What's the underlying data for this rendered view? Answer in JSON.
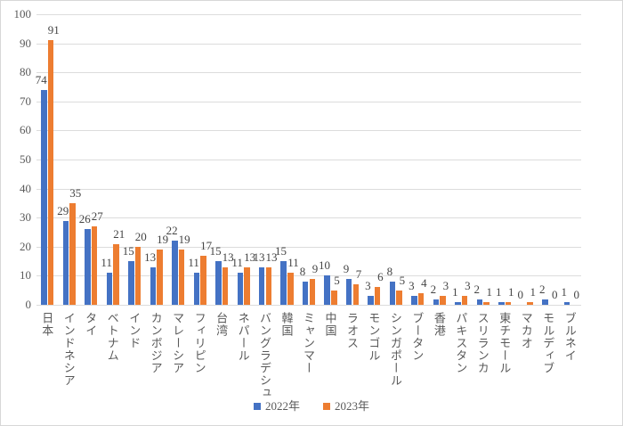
{
  "chart_data": {
    "type": "bar",
    "title": "",
    "xlabel": "",
    "ylabel": "",
    "categories": [
      "日本",
      "インドネシア",
      "タイ",
      "ベトナム",
      "インド",
      "カンボジア",
      "マレーシア",
      "フィリピン",
      "台湾",
      "ネパール",
      "バングラデシュ",
      "韓国",
      "ミャンマー",
      "中国",
      "ラオス",
      "モンゴル",
      "シンガポール",
      "ブータン",
      "香港",
      "パキスタン",
      "スリランカ",
      "東チモール",
      "マカオ",
      "モルディブ",
      "ブルネイ"
    ],
    "series": [
      {
        "name": "2022年",
        "color": "#4472C4",
        "values": [
          74,
          29,
          26,
          11,
          15,
          13,
          22,
          11,
          15,
          11,
          13,
          15,
          8,
          10,
          9,
          3,
          8,
          3,
          2,
          1,
          2,
          1,
          0,
          2,
          1
        ]
      },
      {
        "name": "2023年",
        "color": "#ED7D31",
        "values": [
          91,
          35,
          27,
          21,
          20,
          19,
          19,
          17,
          13,
          13,
          13,
          11,
          9,
          5,
          7,
          6,
          5,
          4,
          3,
          3,
          1,
          1,
          1,
          0,
          0
        ]
      }
    ],
    "ylim": [
      0,
      100
    ],
    "yticks": [
      0,
      10,
      20,
      30,
      40,
      50,
      60,
      70,
      80,
      90,
      100
    ],
    "grid": true,
    "data_labels": "outside-end",
    "legend_position": "bottom",
    "gridline_color": "#dcdcdc",
    "axis_text_color": "#595959",
    "data_label_color": "#444444"
  }
}
